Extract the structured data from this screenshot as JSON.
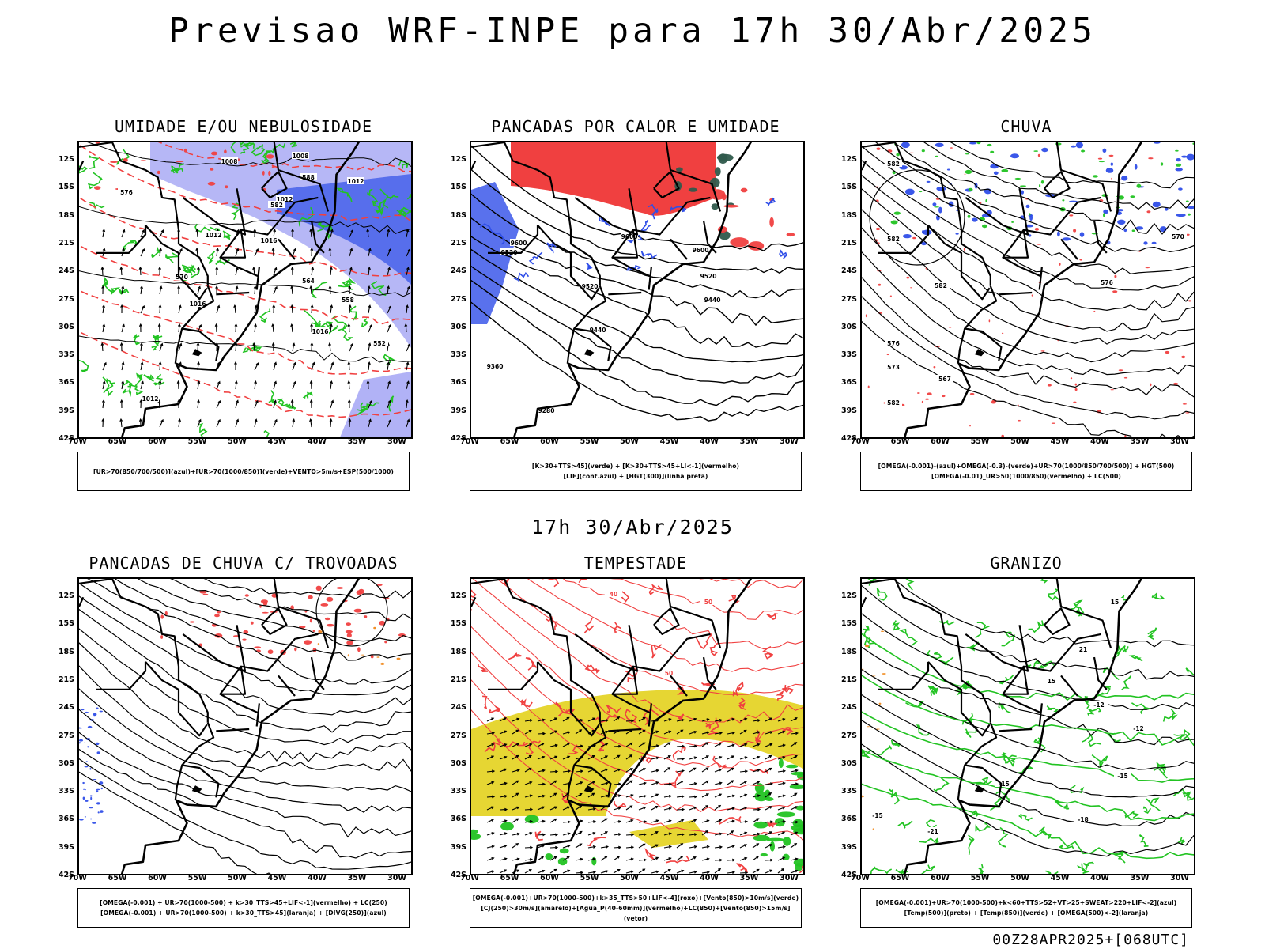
{
  "title": "Previsao WRF-INPE  para 17h 30/Abr/2025",
  "mid_time": "17h 30/Abr/2025",
  "run_label": "00Z28APR2025+[068UTC]",
  "lat_labels": [
    "12S",
    "15S",
    "18S",
    "21S",
    "24S",
    "27S",
    "30S",
    "33S",
    "36S",
    "39S",
    "42S"
  ],
  "lon_labels": [
    "70W",
    "65W",
    "60W",
    "55W",
    "50W",
    "45W",
    "40W",
    "35W",
    "30W"
  ],
  "colors": {
    "blue": "#2f4ee8",
    "lavender": "#a9aaf5",
    "green": "#22c322",
    "red": "#f04040",
    "yellow": "#e6d633",
    "dark_teal": "#2f5a4c",
    "orange": "#f08a1e"
  },
  "panels": [
    {
      "id": "umidade",
      "title": "UMIDADE E/OU NEBULOSIDADE",
      "legend": [
        "[UR>70(850/700/500)](azul)+[UR>70(1000/850)](verde)+VENTO>5m/s+ESP(500/1000)"
      ],
      "contour_labels": [
        "1008",
        "1008",
        "1012",
        "1012",
        "1012",
        "1016",
        "1016",
        "1016",
        "1012",
        "576",
        "570",
        "564",
        "558",
        "552",
        "582",
        "588"
      ]
    },
    {
      "id": "pancadas-calor",
      "title": "PANCADAS POR CALOR E UMIDADE",
      "legend": [
        "[K>30+TTS>45](verde) + [K>30+TTS>45+LI<-1](vermelho)",
        "[LIF](cont.azul) + [HGT(300)](linha preta)"
      ],
      "contour_labels": [
        "9600",
        "9520",
        "9600",
        "9520",
        "9440",
        "9440",
        "9360",
        "9280",
        "9520",
        "9600"
      ]
    },
    {
      "id": "chuva",
      "title": "CHUVA",
      "legend": [
        "[OMEGA(-0.001)-(azul)+OMEGA(-0.3)-(verde)+UR>70(1000/850/700/500)] + HGT(500)",
        "[OMEGA(-0.01)_UR>50(1000/850)(vermelho) + LC(500)"
      ],
      "contour_labels": [
        "582",
        "582",
        "582",
        "576",
        "576",
        "573",
        "567",
        "582",
        "570"
      ]
    },
    {
      "id": "pancadas-trovoadas",
      "title": "PANCADAS DE CHUVA C/ TROVOADAS",
      "legend": [
        "[OMEGA(-0.001) + UR>70(1000-500) + k>30_TTS>45+LIF<-1](vermelho) + LC(250)",
        "[OMEGA(-0.001) + UR>70(1000-500) + k>30_TTS>45](laranja) + [DIVG(250)](azul)"
      ],
      "contour_labels": []
    },
    {
      "id": "tempestade",
      "title": "TEMPESTADE",
      "legend": [
        "[OMEGA(-0.001)+UR>70(1000-500)+k>35_TTS>50+LIF<-4](roxo)+[Vento(850)>10m/s](verde)",
        "[CJ(250)>30m/s](amarelo)+[Agua_P(40-60mm)](vermelho)+LC(850)+[Vento(850)>15m/s](vetor)"
      ],
      "contour_labels": [
        "50",
        "50",
        "40"
      ]
    },
    {
      "id": "granizo",
      "title": "GRANIZO",
      "legend": [
        "[OMEGA(-0.001)+UR>70(1000-500)+k<60+TTS>52+VT>25+SWEAT>220+LIF<-2](azul)",
        "[Temp(500)](preto) + [Temp(850)](verde) + [OMEGA(500)<-2](laranja)"
      ],
      "contour_labels": [
        "-12",
        "-15",
        "-15",
        "-18",
        "-12",
        "-15",
        "-21",
        "15",
        "15",
        "21"
      ]
    }
  ]
}
